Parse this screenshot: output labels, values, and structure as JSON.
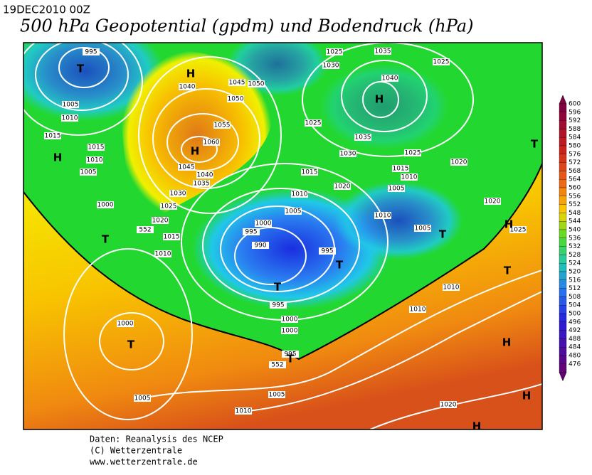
{
  "header": {
    "date": "19DEC2010 00Z",
    "title": "500 hPa Geopotential (gpdm) und Bodendruck (hPa)"
  },
  "map": {
    "isobar_labels": [
      "995",
      "1005",
      "1010",
      "1015",
      "1015",
      "1010",
      "1005",
      "1000",
      "1010",
      "1015",
      "1020",
      "1025",
      "1030",
      "1035",
      "1040",
      "1045",
      "1040",
      "1045",
      "1050",
      "1050",
      "1055",
      "1060",
      "1025",
      "1030",
      "1035",
      "1025",
      "1040",
      "1025",
      "1035",
      "1030",
      "1025",
      "1020",
      "1015",
      "1015",
      "1010",
      "1020",
      "1005",
      "1010",
      "1005",
      "1000",
      "995",
      "990",
      "995",
      "1010",
      "1005",
      "1020",
      "1025",
      "995",
      "1010",
      "1010",
      "1000",
      "1000",
      "1000",
      "995",
      "1005",
      "1005",
      "1010",
      "1020",
      "552",
      "552"
    ],
    "centers": [
      "T",
      "H",
      "H",
      "H",
      "T",
      "T",
      "H",
      "T",
      "T",
      "T",
      "H",
      "T",
      "T",
      "H",
      "H",
      "T",
      "H"
    ]
  },
  "colorbar": {
    "labels": [
      600,
      596,
      592,
      588,
      584,
      580,
      576,
      572,
      568,
      564,
      560,
      556,
      552,
      548,
      544,
      540,
      536,
      532,
      528,
      524,
      520,
      516,
      512,
      508,
      504,
      500,
      496,
      492,
      488,
      484,
      480,
      476
    ]
  },
  "footer": {
    "lines": [
      "Daten: Reanalysis des NCEP",
      "(C) Wetterzentrale",
      "www.wetterzentrale.de"
    ]
  }
}
